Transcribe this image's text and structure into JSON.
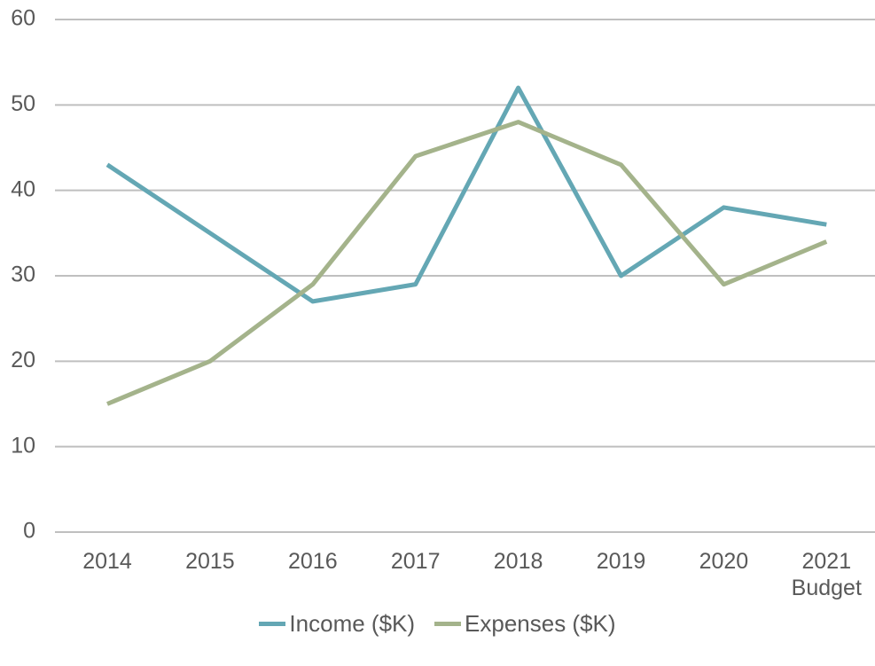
{
  "chart_data": {
    "type": "line",
    "categories": [
      "2014",
      "2015",
      "2016",
      "2017",
      "2018",
      "2019",
      "2020",
      "2021 Budget"
    ],
    "series": [
      {
        "name": "Income ($K)",
        "color": "#64a7b4",
        "values": [
          43,
          35,
          27,
          29,
          52,
          30,
          38,
          36
        ]
      },
      {
        "name": "Expenses ($K)",
        "color": "#a4b38b",
        "values": [
          15,
          20,
          29,
          44,
          48,
          43,
          29,
          34
        ]
      }
    ],
    "ylim": [
      0,
      60
    ],
    "yticks": [
      0,
      10,
      20,
      30,
      40,
      50,
      60
    ],
    "grid": true,
    "legend": "bottom"
  }
}
